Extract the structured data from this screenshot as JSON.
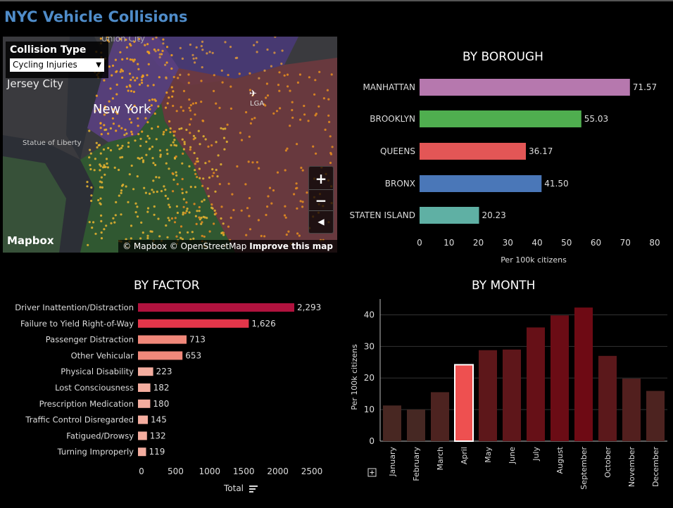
{
  "page_title": "NYC Vehicle Collisions",
  "map": {
    "filter_label": "Collision Type",
    "filter_value": "Cycling Injuries",
    "labels": [
      "Jersey City",
      "New York",
      "Statue of Liberty",
      "LGA",
      "Union City"
    ],
    "zoom_in": "+",
    "zoom_out": "−",
    "logo": "Mapbox",
    "attribution_1": "© Mapbox © OpenStreetMap",
    "attribution_2": "Improve this map"
  },
  "colors": {
    "title": "#4f8cc9",
    "manhattan": "#b678ae",
    "brooklyn": "#4fae4f",
    "queens": "#e35656",
    "bronx": "#4a77b8",
    "staten_island": "#5fb0a4"
  },
  "chart_data": [
    {
      "type": "bar",
      "orientation": "horizontal",
      "title": "BY BOROUGH",
      "categories": [
        "MANHATTAN",
        "BROOKLYN",
        "QUEENS",
        "BRONX",
        "STATEN ISLAND"
      ],
      "values": [
        71.57,
        55.03,
        36.17,
        41.5,
        20.23
      ],
      "value_labels": [
        "71.57",
        "55.03",
        "36.17",
        "41.50",
        "20.23"
      ],
      "colors": [
        "#b678ae",
        "#4fae4f",
        "#e35656",
        "#4a77b8",
        "#5fb0a4"
      ],
      "xlabel": "Per 100k citizens",
      "xlim": [
        0,
        80
      ],
      "xticks": [
        0,
        10,
        20,
        30,
        40,
        50,
        60,
        70,
        80
      ]
    },
    {
      "type": "bar",
      "orientation": "horizontal",
      "title": "BY FACTOR",
      "categories": [
        "Driver Inattention/Distraction",
        "Failure to Yield Right-of-Way",
        "Passenger Distraction",
        "Other Vehicular",
        "Physical Disability",
        "Lost Consciousness",
        "Prescription Medication",
        "Traffic Control Disregarded",
        "Fatigued/Drowsy",
        "Turning Improperly"
      ],
      "values": [
        2293,
        1626,
        713,
        653,
        223,
        182,
        180,
        145,
        132,
        119
      ],
      "value_labels": [
        "2,293",
        "1,626",
        "713",
        "653",
        "223",
        "182",
        "180",
        "145",
        "132",
        "119"
      ],
      "xlabel": "Total",
      "xlim": [
        0,
        2600
      ],
      "xticks": [
        0,
        500,
        1000,
        1500,
        2000,
        2500
      ]
    },
    {
      "type": "bar",
      "orientation": "vertical",
      "title": "BY MONTH",
      "categories": [
        "January",
        "February",
        "March",
        "April",
        "May",
        "June",
        "July",
        "August",
        "September",
        "October",
        "November",
        "December"
      ],
      "values": [
        11.3,
        10.0,
        15.5,
        24.2,
        28.8,
        29.0,
        36.0,
        39.8,
        42.3,
        27.0,
        19.8,
        15.9
      ],
      "highlighted": "April",
      "ylabel": "Per 100k citizens",
      "ylim": [
        0,
        45
      ],
      "yticks": [
        0,
        10,
        20,
        30,
        40
      ],
      "grid": true
    }
  ]
}
